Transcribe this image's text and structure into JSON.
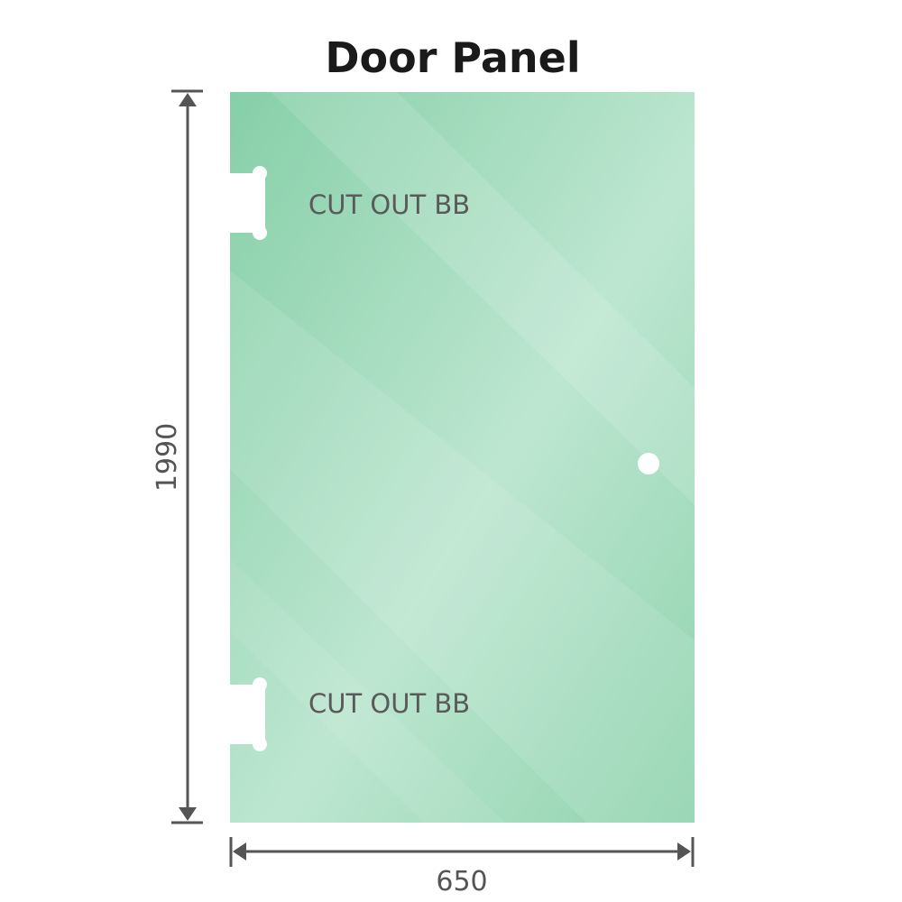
{
  "title": "Door Panel",
  "cutouts": [
    {
      "label": "CUT OUT BB"
    },
    {
      "label": "CUT OUT BB"
    }
  ],
  "dimensions": {
    "height": "1990",
    "width": "650"
  },
  "colors": {
    "glass": "#86cfa8",
    "glass_light": "#bde6d0",
    "dimension_line": "#555555"
  }
}
